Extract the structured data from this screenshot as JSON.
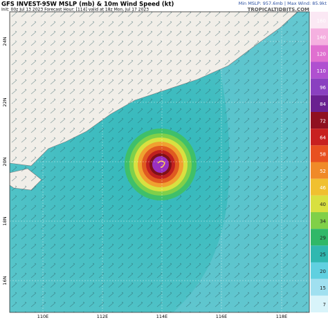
{
  "header": {
    "title": "GFS INVEST-95W MSLP (mb) & 10m Wind Speed (kt)",
    "subtitle": "Init: 00z Jul 13 2023   Forecast Hour: [114]   valid at 18z Mon, Jul 17 2023",
    "stats": "Min MSLP: 957.6mb | Max Wind: 85.9kt",
    "credit": "TROPICALTIDBITS.COM"
  },
  "map": {
    "lat_labels": [
      "24N",
      "22N",
      "20N",
      "18N",
      "16N"
    ],
    "lon_labels": [
      "110E",
      "112E",
      "114E",
      "116E",
      "118E"
    ]
  },
  "colorbar": {
    "labels": [
      "160",
      "140",
      "120",
      "110",
      "96",
      "84",
      "72",
      "64",
      "58",
      "52",
      "46",
      "40",
      "34",
      "29",
      "25",
      "20",
      "15",
      "7"
    ]
  }
}
